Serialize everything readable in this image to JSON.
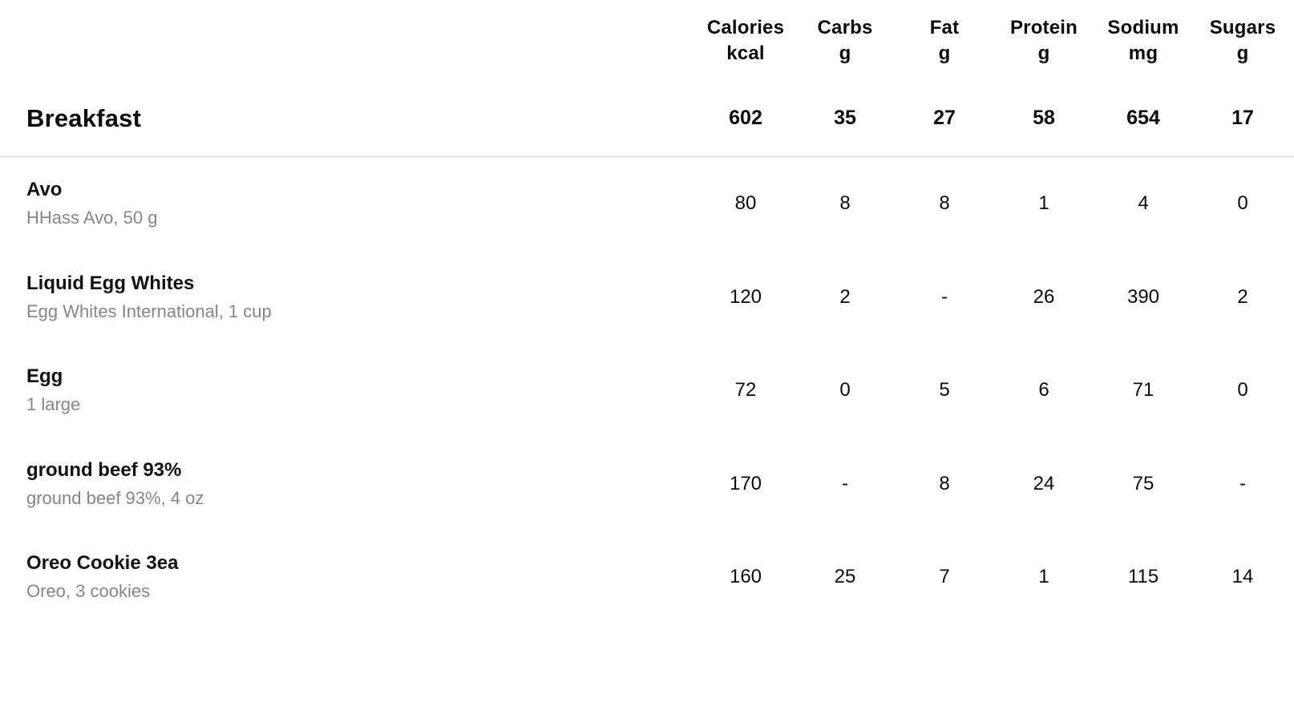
{
  "table": {
    "columns": [
      {
        "label": "Calories",
        "unit": "kcal"
      },
      {
        "label": "Carbs",
        "unit": "g"
      },
      {
        "label": "Fat",
        "unit": "g"
      },
      {
        "label": "Protein",
        "unit": "g"
      },
      {
        "label": "Sodium",
        "unit": "mg"
      },
      {
        "label": "Sugars",
        "unit": "g"
      }
    ],
    "group": {
      "name": "Breakfast",
      "totals": [
        "602",
        "35",
        "27",
        "58",
        "654",
        "17"
      ]
    },
    "items": [
      {
        "name": "Avo",
        "detail": "HHass Avo, 50 g",
        "values": [
          "80",
          "8",
          "8",
          "1",
          "4",
          "0"
        ]
      },
      {
        "name": "Liquid Egg Whites",
        "detail": "Egg Whites International, 1 cup",
        "values": [
          "120",
          "2",
          "-",
          "26",
          "390",
          "2"
        ]
      },
      {
        "name": "Egg",
        "detail": "1 large",
        "values": [
          "72",
          "0",
          "5",
          "6",
          "71",
          "0"
        ]
      },
      {
        "name": "ground beef 93%",
        "detail": "ground beef 93%, 4 oz",
        "values": [
          "170",
          "-",
          "8",
          "24",
          "75",
          "-"
        ]
      },
      {
        "name": "Oreo Cookie 3ea",
        "detail": "Oreo, 3 cookies",
        "values": [
          "160",
          "25",
          "7",
          "1",
          "115",
          "14"
        ]
      }
    ],
    "colors": {
      "text_primary": "#111111",
      "text_secondary": "#85858b",
      "divider": "#dadada",
      "background": "#ffffff"
    }
  }
}
